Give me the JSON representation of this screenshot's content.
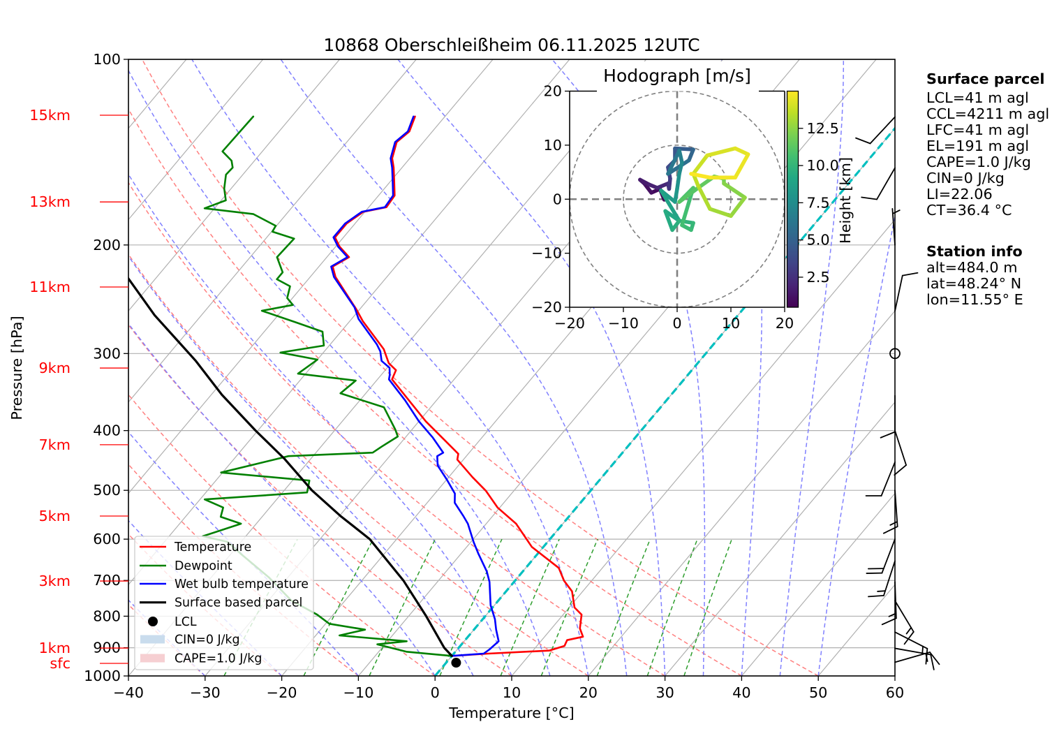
{
  "chart_data": [
    {
      "type": "line",
      "title": "10868 Oberschleißheim 06.11.2025 12UTC",
      "xlabel": "Temperature [°C]",
      "ylabel": "Pressure [hPa]",
      "xlim": [
        -40,
        60
      ],
      "ylim": [
        1000,
        100
      ],
      "xticks": [
        -40,
        -30,
        -20,
        -10,
        0,
        10,
        20,
        30,
        40,
        50,
        60
      ],
      "xtick_labels": [
        "−40",
        "−30",
        "−20",
        "−10",
        "0",
        "10",
        "20",
        "30",
        "40",
        "50",
        "60"
      ],
      "yticks": [
        100,
        200,
        300,
        400,
        500,
        600,
        700,
        800,
        900,
        1000
      ],
      "ytick_labels": [
        "100",
        "200",
        "300",
        "400",
        "500",
        "600",
        "700",
        "800",
        "900",
        "1000"
      ],
      "grid": true,
      "skew_isotherm_spacing": 10,
      "series": [
        {
          "name": "Temperature",
          "color": "#ff0000",
          "points": [
            [
              123.8,
              -63.9
            ],
            [
              130.9,
              -63.0
            ],
            [
              136.2,
              -63.5
            ],
            [
              144.7,
              -62.3
            ],
            [
              149.8,
              -61.1
            ],
            [
              157.8,
              -59.5
            ],
            [
              166.3,
              -57.9
            ],
            [
              173.7,
              -57.7
            ],
            [
              176.7,
              -60.2
            ],
            [
              184.5,
              -61.1
            ],
            [
              194.4,
              -61.1
            ],
            [
              201.2,
              -59.5
            ],
            [
              209.3,
              -57.1
            ],
            [
              216.8,
              -58.2
            ],
            [
              225.4,
              -56.7
            ],
            [
              254.5,
              -50.4
            ],
            [
              265.8,
              -48.3
            ],
            [
              295.1,
              -42.5
            ],
            [
              311.0,
              -40.3
            ],
            [
              319.2,
              -38.6
            ],
            [
              330.4,
              -38.1
            ],
            [
              351.2,
              -34.6
            ],
            [
              386.4,
              -29.1
            ],
            [
              436.3,
              -21.3
            ],
            [
              445.8,
              -20.8
            ],
            [
              476.0,
              -16.9
            ],
            [
              501.3,
              -13.6
            ],
            [
              533.1,
              -10.3
            ],
            [
              566.4,
              -6.1
            ],
            [
              617.7,
              -1.5
            ],
            [
              668.0,
              4.3
            ],
            [
              700.8,
              6.4
            ],
            [
              729.0,
              8.6
            ],
            [
              774.5,
              10.7
            ],
            [
              795.3,
              12.4
            ],
            [
              837.6,
              13.7
            ],
            [
              863.7,
              15.0
            ],
            [
              874.7,
              13.3
            ],
            [
              894.0,
              13.6
            ],
            [
              909.7,
              12.1
            ],
            [
              920.0,
              4.5
            ],
            [
              927.9,
              0.0
            ]
          ]
        },
        {
          "name": "Dewpoint",
          "color": "#008000",
          "points": [
            [
              123.8,
              -85.0
            ],
            [
              141.0,
              -85.2
            ],
            [
              146.0,
              -83.0
            ],
            [
              149.8,
              -82.1
            ],
            [
              153.8,
              -82.2
            ],
            [
              162.0,
              -80.9
            ],
            [
              169.3,
              -79.4
            ],
            [
              174.4,
              -81.3
            ],
            [
              178.2,
              -74.3
            ],
            [
              186.2,
              -70.1
            ],
            [
              190.3,
              -69.9
            ],
            [
              195.3,
              -66.3
            ],
            [
              209.3,
              -66.5
            ],
            [
              221.5,
              -64.1
            ],
            [
              227.3,
              -64.1
            ],
            [
              233.4,
              -61.6
            ],
            [
              243.8,
              -60.7
            ],
            [
              250.2,
              -59.2
            ],
            [
              255.7,
              -62.6
            ],
            [
              267.0,
              -56.9
            ],
            [
              276.5,
              -52.4
            ],
            [
              291.2,
              -50.7
            ],
            [
              298.9,
              -55.6
            ],
            [
              306.9,
              -50.0
            ],
            [
              323.4,
              -51.0
            ],
            [
              331.9,
              -42.7
            ],
            [
              348.1,
              -43.3
            ],
            [
              366.7,
              -36.1
            ],
            [
              398.3,
              -32.2
            ],
            [
              408.9,
              -31.1
            ],
            [
              424.9,
              -32.1
            ],
            [
              434.3,
              -32.6
            ],
            [
              440.0,
              -43.2
            ],
            [
              467.8,
              -50.2
            ],
            [
              482.1,
              -37.8
            ],
            [
              503.9,
              -36.8
            ],
            [
              517.2,
              -49.4
            ],
            [
              533.1,
              -46.1
            ],
            [
              551.9,
              -45.4
            ],
            [
              566.4,
              -42.0
            ],
            [
              593.5,
              -45.6
            ],
            [
              606.0,
              -41.8
            ],
            [
              634.0,
              -38.7
            ],
            [
              691.8,
              -32.5
            ],
            [
              754.6,
              -27.0
            ],
            [
              795.3,
              -22.1
            ],
            [
              823.0,
              -19.5
            ],
            [
              841.3,
              -14.2
            ],
            [
              859.7,
              -16.9
            ],
            [
              878.5,
              -7.5
            ],
            [
              888.6,
              -11.0
            ],
            [
              913.5,
              -6.4
            ],
            [
              927.9,
              0.0
            ]
          ]
        },
        {
          "name": "Wet bulb temperature",
          "color": "#0000ff",
          "points": [
            [
              123.8,
              -64.1
            ],
            [
              130.9,
              -63.2
            ],
            [
              136.2,
              -63.7
            ],
            [
              144.7,
              -62.5
            ],
            [
              149.8,
              -61.3
            ],
            [
              157.8,
              -59.7
            ],
            [
              166.3,
              -58.1
            ],
            [
              173.7,
              -57.9
            ],
            [
              176.7,
              -60.4
            ],
            [
              184.5,
              -61.3
            ],
            [
              194.4,
              -61.3
            ],
            [
              201.2,
              -59.7
            ],
            [
              209.3,
              -57.3
            ],
            [
              216.8,
              -58.4
            ],
            [
              225.4,
              -56.9
            ],
            [
              252.4,
              -50.9
            ],
            [
              263.6,
              -49.1
            ],
            [
              290.0,
              -43.9
            ],
            [
              297.6,
              -42.7
            ],
            [
              308.3,
              -41.5
            ],
            [
              316.4,
              -39.7
            ],
            [
              324.8,
              -38.9
            ],
            [
              330.4,
              -38.5
            ],
            [
              357.3,
              -34.1
            ],
            [
              386.4,
              -30.0
            ],
            [
              410.7,
              -26.4
            ],
            [
              434.3,
              -23.4
            ],
            [
              440.0,
              -23.8
            ],
            [
              455.9,
              -22.7
            ],
            [
              480.1,
              -20.0
            ],
            [
              506.0,
              -17.4
            ],
            [
              523.8,
              -16.4
            ],
            [
              549.5,
              -13.9
            ],
            [
              566.4,
              -12.4
            ],
            [
              607.1,
              -9.6
            ],
            [
              634.0,
              -7.7
            ],
            [
              676.8,
              -4.7
            ],
            [
              703.8,
              -3.2
            ],
            [
              767.8,
              -0.5
            ],
            [
              809.2,
              1.6
            ],
            [
              841.3,
              2.9
            ],
            [
              878.5,
              4.5
            ],
            [
              905.7,
              4.2
            ],
            [
              920.0,
              3.9
            ],
            [
              927.9,
              0.0
            ]
          ]
        },
        {
          "name": "Surface based parcel",
          "color": "#000000",
          "points": [
            [
              927.9,
              0.0
            ],
            [
              900,
              -1.9
            ],
            [
              800,
              -7.7
            ],
            [
              700,
              -14.6
            ],
            [
              600,
              -23.5
            ],
            [
              550,
              -29.9
            ],
            [
              500,
              -36.4
            ],
            [
              444,
              -43.5
            ],
            [
              400,
              -50.3
            ],
            [
              350,
              -58.6
            ],
            [
              308,
              -65.8
            ],
            [
              260,
              -76.1
            ],
            [
              224,
              -84.2
            ]
          ]
        }
      ],
      "lcl": {
        "p": 951.7,
        "t": 1.3
      },
      "legend_position": "lower-left",
      "legend": [
        {
          "label": "Temperature",
          "kind": "line",
          "color": "#ff0000"
        },
        {
          "label": "Dewpoint",
          "kind": "line",
          "color": "#008000"
        },
        {
          "label": "Wet bulb temperature",
          "kind": "line",
          "color": "#0000ff"
        },
        {
          "label": "Surface based parcel",
          "kind": "line",
          "color": "#000000"
        },
        {
          "label": "LCL",
          "kind": "marker",
          "color": "#000000"
        },
        {
          "label": "CIN=0 J/kg",
          "kind": "patch",
          "color": "#c9dced"
        },
        {
          "label": "CAPE=1.0 J/kg",
          "kind": "patch",
          "color": "#f6cfd2"
        }
      ],
      "height_labels": [
        {
          "label": "15km",
          "p": 123.2
        },
        {
          "label": "13km",
          "p": 170.3
        },
        {
          "label": "11km",
          "p": 234.0
        },
        {
          "label": "9km",
          "p": 316.7
        },
        {
          "label": "7km",
          "p": 421.7
        },
        {
          "label": "5km",
          "p": 550.4
        },
        {
          "label": "3km",
          "p": 701.5
        },
        {
          "label": "1km",
          "p": 901.1
        },
        {
          "label": "sfc",
          "p": 954.1
        }
      ],
      "height_label_color": "#ff0000",
      "wind_barbs": [
        {
          "p": 124,
          "direction_deg": 223,
          "speed_kt": 10
        },
        {
          "p": 150,
          "direction_deg": 210,
          "speed_kt": 10
        },
        {
          "p": 200,
          "direction_deg": 356,
          "speed_kt": 5
        },
        {
          "p": 256,
          "direction_deg": 12,
          "speed_kt": 10
        },
        {
          "p": 300,
          "direction_deg": 0,
          "speed_kt": 0
        },
        {
          "p": 351,
          "direction_deg": 180,
          "speed_kt": 10
        },
        {
          "p": 400,
          "direction_deg": 162,
          "speed_kt": 10
        },
        {
          "p": 450,
          "direction_deg": 202,
          "speed_kt": 10
        },
        {
          "p": 500,
          "direction_deg": 176,
          "speed_kt": 15
        },
        {
          "p": 600,
          "direction_deg": 201,
          "speed_kt": 20
        },
        {
          "p": 651,
          "direction_deg": 198,
          "speed_kt": 15
        },
        {
          "p": 704,
          "direction_deg": 178,
          "speed_kt": 15
        },
        {
          "p": 755,
          "direction_deg": 149,
          "speed_kt": 15
        },
        {
          "p": 849,
          "direction_deg": 117,
          "speed_kt": 15
        },
        {
          "p": 902,
          "direction_deg": 100,
          "speed_kt": 15
        },
        {
          "p": 950,
          "direction_deg": 74,
          "speed_kt": 10
        }
      ],
      "reference_lines": {
        "dry_adiabats_t0_C": [
          -40,
          -30,
          -20,
          -10,
          0,
          10,
          20,
          30,
          40,
          50
        ],
        "moist_adiabats_t0_C": [
          -40,
          -30,
          -20,
          -10,
          0,
          5,
          10,
          15,
          20,
          25,
          30,
          35,
          40,
          45,
          50
        ],
        "mixing_ratios_kgkg": [
          0.0004,
          0.001,
          0.002,
          0.004,
          0.007,
          0.01,
          0.016,
          0.024,
          0.032
        ],
        "mixing_ratio_p_range": [
          1000,
          600
        ],
        "highlighted_isotherm_C": 0,
        "isotherm_color": "#b0b0b0",
        "dry_adiabat_color": "#ff8080",
        "moist_adiabat_color": "#8080ff",
        "mixing_ratio_color": "#2e9e2e",
        "highlight_color": "#00bfbf"
      }
    },
    {
      "type": "line",
      "title": "Hodograph [m/s]",
      "xlim": [
        -20,
        20
      ],
      "ylim": [
        -20,
        20
      ],
      "xticks": [
        -20,
        -10,
        0,
        10,
        20
      ],
      "xtick_labels": [
        "−20",
        "−10",
        "0",
        "10",
        "20"
      ],
      "yticks": [
        -20,
        -10,
        0,
        10,
        20
      ],
      "ytick_labels": [
        "−20",
        "−10",
        "0",
        "10",
        "20"
      ],
      "rings": [
        10,
        20
      ],
      "u": [
        -2.4,
        -3.2,
        -4.8,
        -6.1,
        -6.9,
        -5.2,
        -3.7,
        -1.7,
        -1.5,
        -1.3,
        -1.7,
        -0.4,
        -0.4,
        3.0,
        2.2,
        -1.7,
        0.4,
        0.9,
        0.4,
        0.0,
        -0.4,
        -3.0,
        0.4,
        -2.2,
        -0.9,
        0.4,
        3.0,
        2.6,
        0.9,
        3.0,
        0.4,
        3.9,
        6.9,
        8.7,
        8.7,
        12.6,
        10.0,
        6.1,
        3.9,
        3.0,
        5.6,
        10.8,
        13.2,
        10.8,
        6.1,
        2.6
      ],
      "v": [
        -0.1,
        1.9,
        1.2,
        2.9,
        3.6,
        2.7,
        2.1,
        2.9,
        1.9,
        3.8,
        5.9,
        7.2,
        9.4,
        9.2,
        7.2,
        4.7,
        9.0,
        6.8,
        4.7,
        1.9,
        -0.5,
        1.6,
        -4.0,
        -2.2,
        -5.7,
        -4.0,
        -4.4,
        -5.7,
        -4.8,
        2.1,
        -0.5,
        2.1,
        4.2,
        3.8,
        2.9,
        0.3,
        -3.1,
        -1.8,
        2.5,
        4.7,
        8.1,
        9.4,
        8.3,
        4.0,
        4.0,
        4.7
      ],
      "height_km": [
        0.5,
        0.8,
        1.0,
        1.3,
        1.5,
        1.7,
        1.9,
        2.2,
        2.5,
        3.0,
        3.5,
        4.0,
        4.5,
        5.0,
        5.5,
        6.0,
        6.5,
        7.0,
        7.5,
        8.0,
        8.3,
        8.6,
        9.0,
        9.2,
        9.5,
        9.7,
        10.0,
        10.2,
        10.4,
        10.7,
        11.0,
        11.3,
        11.6,
        11.9,
        12.2,
        12.5,
        12.8,
        13.1,
        13.4,
        13.7,
        14.0,
        14.3,
        14.5,
        14.7,
        14.85,
        15.0
      ],
      "colorbar": {
        "label": "Height [km]",
        "range": [
          0.48,
          15.0
        ],
        "ticks": [
          2.5,
          5.0,
          7.5,
          10.0,
          12.5
        ],
        "tick_labels": [
          "2.5",
          "5.0",
          "7.5",
          "10.0",
          "12.5"
        ]
      },
      "colormap": [
        "#440154",
        "#482475",
        "#414487",
        "#355f8d",
        "#2a788e",
        "#21918c",
        "#22a884",
        "#44bf70",
        "#7ad151",
        "#bddf26",
        "#fde725"
      ]
    }
  ],
  "info_panel": {
    "surface_parcel": {
      "heading": "Surface parcel",
      "lines": [
        "LCL=41 m agl",
        "CCL=4211 m agl",
        "LFC=41 m agl",
        "EL=191 m agl",
        "CAPE=1.0 J/kg",
        "CIN=0 J/kg",
        "LI=22.06",
        "CT=36.4 °C"
      ]
    },
    "station_info": {
      "heading": "Station info",
      "lines": [
        "alt=484.0 m",
        "lat=48.24° N",
        "lon=11.55° E"
      ]
    }
  }
}
